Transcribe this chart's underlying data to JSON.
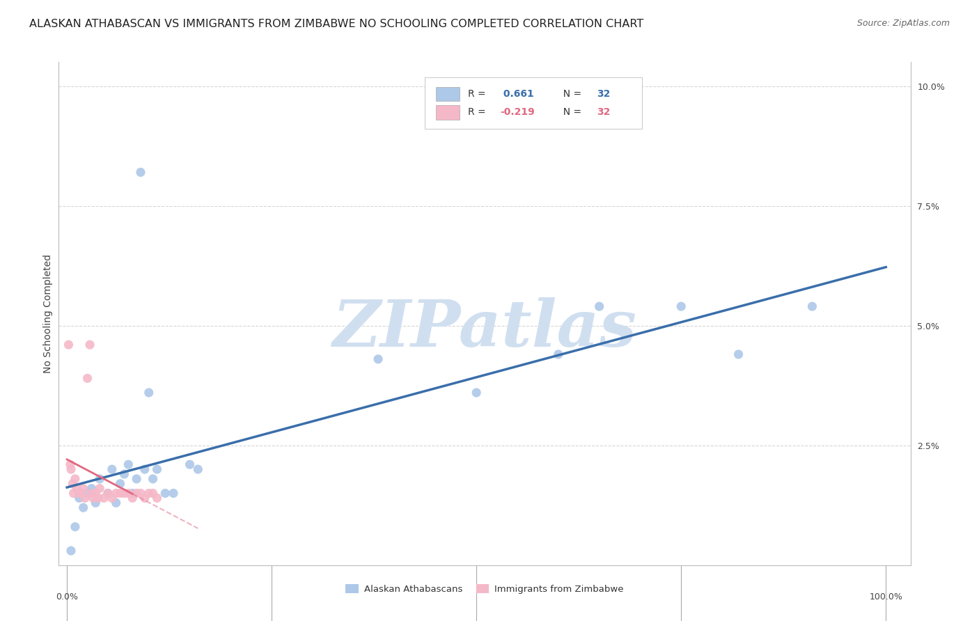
{
  "title": "ALASKAN ATHABASCAN VS IMMIGRANTS FROM ZIMBABWE NO SCHOOLING COMPLETED CORRELATION CHART",
  "source": "Source: ZipAtlas.com",
  "ylabel": "No Schooling Completed",
  "legend_blue_label": "Alaskan Athabascans",
  "legend_pink_label": "Immigrants from Zimbabwe",
  "blue_r": 0.661,
  "pink_r": -0.219,
  "blue_color": "#adc8e8",
  "pink_color": "#f5b8c8",
  "blue_line_color": "#3a6eaa",
  "pink_line_color": "#e06880",
  "watermark_text": "ZIPatlas",
  "watermark_color": "#d0dff0",
  "blue_x": [
    0.5,
    1.0,
    1.5,
    2.0,
    2.5,
    3.0,
    3.5,
    4.0,
    5.0,
    5.5,
    6.0,
    6.5,
    7.0,
    7.5,
    8.0,
    8.5,
    9.0,
    9.5,
    10.0,
    10.5,
    11.0,
    12.0,
    13.0,
    15.0,
    16.0,
    38.0,
    50.0,
    60.0,
    65.0,
    75.0,
    82.0,
    91.0
  ],
  "blue_y": [
    0.3,
    0.8,
    1.4,
    1.2,
    1.5,
    1.6,
    1.3,
    1.8,
    1.5,
    2.0,
    1.3,
    1.7,
    1.9,
    2.1,
    1.5,
    1.8,
    8.2,
    2.0,
    3.6,
    1.8,
    2.0,
    1.5,
    1.5,
    2.1,
    2.0,
    4.3,
    3.6,
    4.4,
    5.4,
    5.4,
    4.4,
    5.4
  ],
  "pink_x": [
    0.2,
    0.4,
    0.5,
    0.7,
    0.8,
    1.0,
    1.2,
    1.5,
    1.7,
    2.0,
    2.2,
    2.5,
    2.8,
    3.0,
    3.2,
    3.5,
    3.8,
    4.0,
    4.5,
    5.0,
    5.5,
    6.0,
    6.5,
    7.0,
    7.5,
    8.0,
    8.5,
    9.0,
    9.5,
    10.0,
    10.5,
    11.0
  ],
  "pink_y": [
    4.6,
    2.1,
    2.0,
    1.7,
    1.5,
    1.8,
    1.6,
    1.5,
    1.5,
    1.6,
    1.4,
    3.9,
    4.6,
    1.5,
    1.4,
    1.5,
    1.4,
    1.6,
    1.4,
    1.5,
    1.4,
    1.5,
    1.5,
    1.5,
    1.5,
    1.4,
    1.5,
    1.5,
    1.4,
    1.5,
    1.5,
    1.4
  ],
  "ylim_min": 0.0,
  "ylim_max": 10.5,
  "xlim_min": -1.0,
  "xlim_max": 103.0,
  "yticks": [
    2.5,
    5.0,
    7.5,
    10.0
  ],
  "ytick_labels": [
    "2.5%",
    "5.0%",
    "7.5%",
    "10.0%"
  ],
  "grid_color": "#cccccc",
  "bg_color": "#ffffff",
  "title_fontsize": 11.5,
  "source_fontsize": 9,
  "axis_label_fontsize": 10,
  "tick_fontsize": 9
}
